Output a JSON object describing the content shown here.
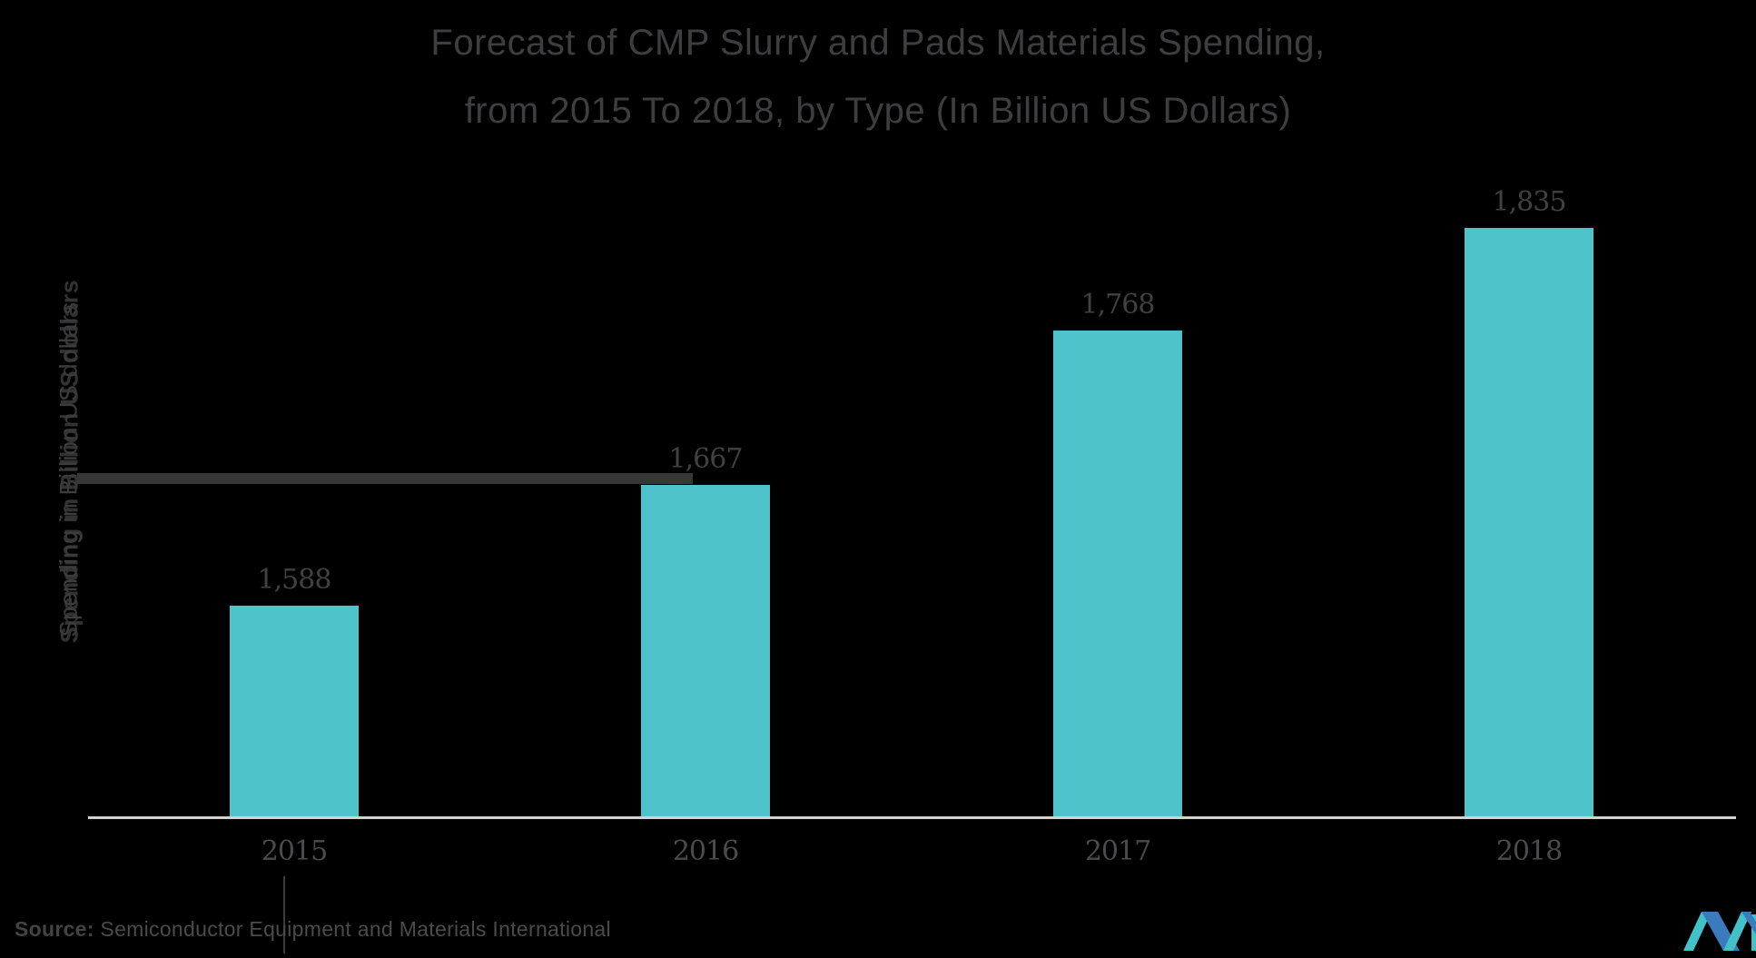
{
  "page": {
    "background_color": "#000000"
  },
  "title": {
    "line1": "Forecast of CMP Slurry and Pads Materials Spending,",
    "line2": "from 2015 To 2018, by Type (In Billion US Dollars)",
    "color": "#3E3E41"
  },
  "chart_data": {
    "type": "bar",
    "title": "Forecast of CMP Slurry and Pads Materials Spending, from 2015 To 2018, by Type (In Billion US Dollars)",
    "categories": [
      "2015",
      "2016",
      "2017",
      "2018"
    ],
    "values": [
      1588,
      1667,
      1768,
      1835
    ],
    "value_labels": [
      "1,588",
      "1,667",
      "1,768",
      "1,835"
    ],
    "xlabel": "",
    "ylabel": "Spending in Billion US dollars",
    "ylim": [
      1450,
      1835
    ],
    "grid": false,
    "legend": "none",
    "background": "#000000",
    "bar_color": "#4EC3CC",
    "axis_line_color": "#D5D2CD",
    "label_color": "#414144",
    "tick_label_color": "#4B4B4D"
  },
  "source": {
    "label": "Source:",
    "text": " Semiconductor Equipment and Materials International",
    "color": "#4B4B4B"
  },
  "logo": {
    "blue": "#3A7BBE",
    "teal": "#41C2C9"
  }
}
